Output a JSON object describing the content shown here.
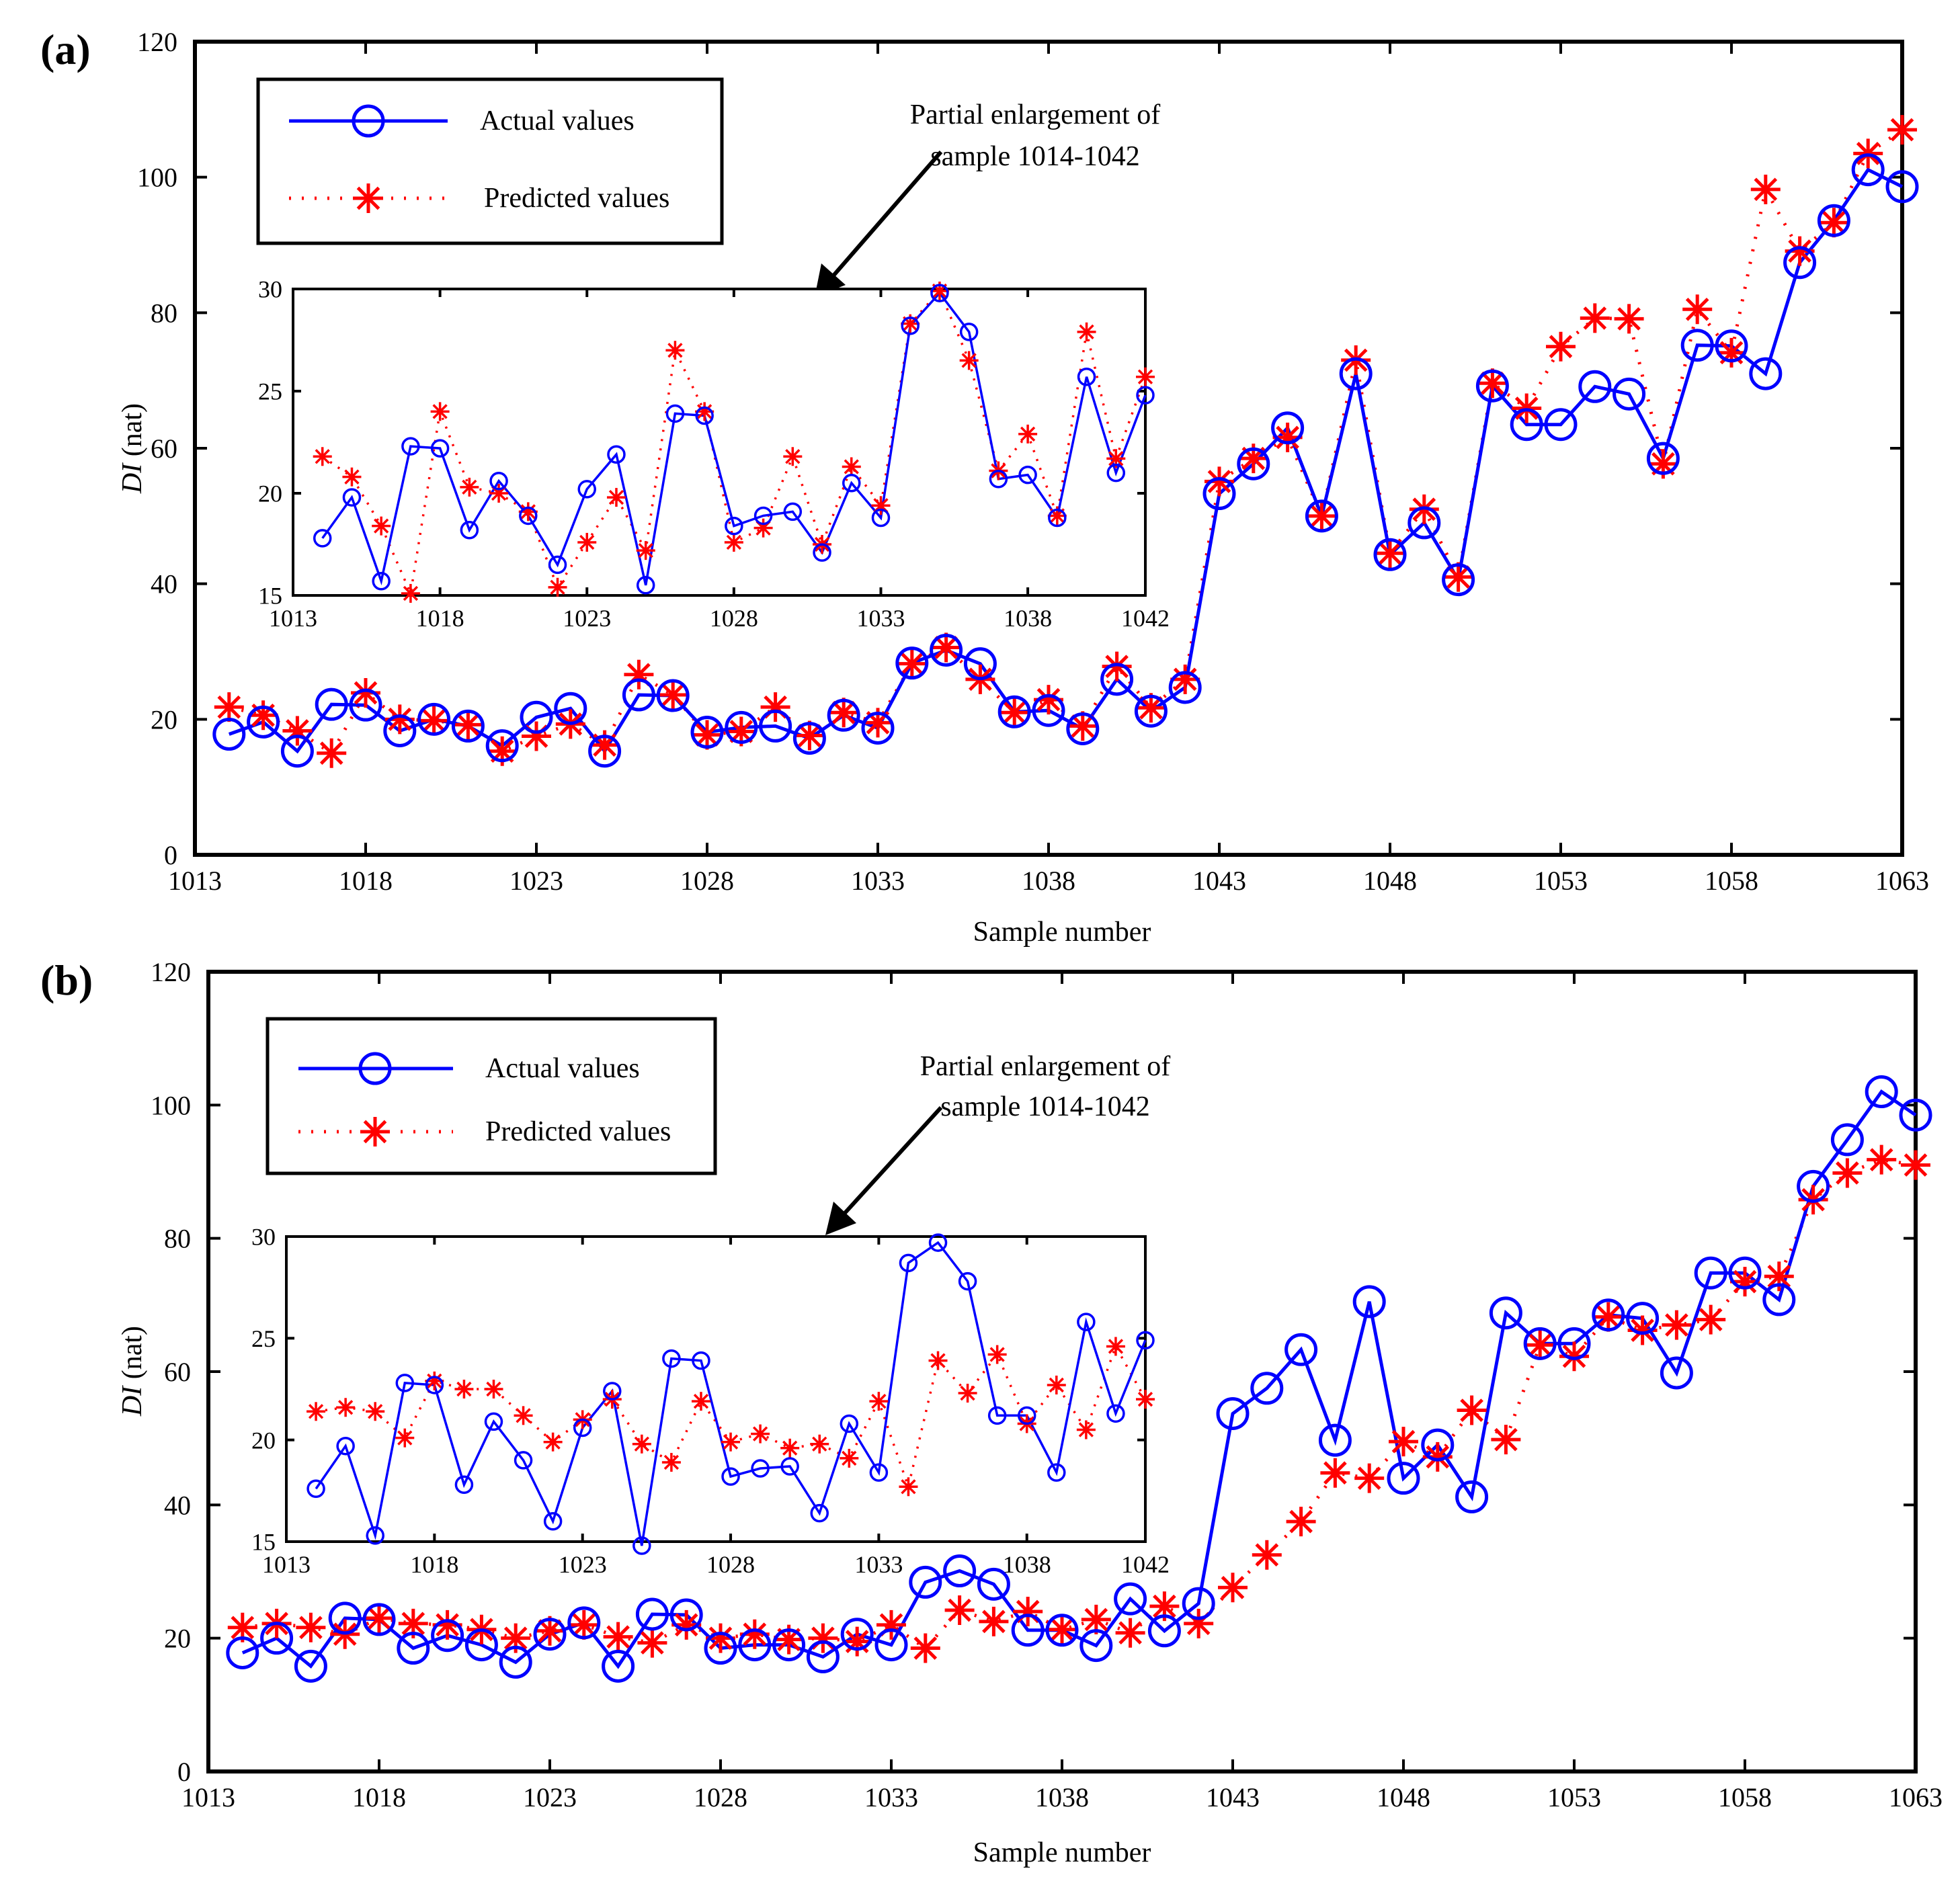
{
  "chart_data": [
    {
      "panel_label": "(a)",
      "type": "line",
      "xlabel": "Sample number",
      "ylabel_italic": "DI",
      "ylabel_rest": " (nat)",
      "xlim": [
        1013,
        1063
      ],
      "ylim": [
        0,
        120
      ],
      "xticks": [
        1013,
        1018,
        1023,
        1028,
        1033,
        1038,
        1043,
        1048,
        1053,
        1058,
        1063
      ],
      "yticks": [
        0,
        20,
        40,
        60,
        80,
        100,
        120
      ],
      "legend": {
        "position": "top-left",
        "entries": [
          "Actual values",
          "Predicted values"
        ]
      },
      "annotation": {
        "line1": "Partial enlargement of",
        "line2": "sample 1014-1042"
      },
      "x": [
        1014,
        1015,
        1016,
        1017,
        1018,
        1019,
        1020,
        1021,
        1022,
        1023,
        1024,
        1025,
        1026,
        1027,
        1028,
        1029,
        1030,
        1031,
        1032,
        1033,
        1034,
        1035,
        1036,
        1037,
        1038,
        1039,
        1040,
        1041,
        1042,
        1043,
        1044,
        1045,
        1046,
        1047,
        1048,
        1049,
        1050,
        1051,
        1052,
        1053,
        1054,
        1055,
        1056,
        1057,
        1058,
        1059,
        1060,
        1061,
        1062,
        1063
      ],
      "series": [
        {
          "name": "Actual values",
          "color": "#0000ff",
          "style": "solid",
          "marker": "circle",
          "values": [
            17.8,
            19.6,
            15.3,
            22.2,
            22.1,
            18.3,
            20.0,
            19.0,
            16.1,
            20.3,
            21.6,
            15.3,
            23.6,
            23.5,
            18.1,
            18.8,
            19.0,
            17.2,
            20.6,
            18.7,
            28.3,
            30.2,
            28.2,
            21.1,
            21.3,
            18.6,
            25.9,
            21.2,
            24.7,
            53.3,
            57.7,
            63.0,
            50.0,
            71.0,
            44.3,
            49.0,
            40.6,
            69.2,
            63.5,
            63.5,
            69.1,
            68.0,
            58.5,
            75.2,
            75.1,
            71.0,
            87.4,
            93.6,
            101.1,
            98.6
          ]
        },
        {
          "name": "Predicted values",
          "color": "#ff0000",
          "style": "dotted",
          "marker": "asterisk",
          "values": [
            21.8,
            20.6,
            18.3,
            15.0,
            23.9,
            20.0,
            19.8,
            19.2,
            15.3,
            17.5,
            19.3,
            16.2,
            26.6,
            23.6,
            17.7,
            18.2,
            21.8,
            17.6,
            21.0,
            19.5,
            28.2,
            30.6,
            25.9,
            21.0,
            22.9,
            19.0,
            27.8,
            21.7,
            25.9,
            55.1,
            58.5,
            61.6,
            50.0,
            73.0,
            44.5,
            51.0,
            41.0,
            69.6,
            65.9,
            75.0,
            79.2,
            79.1,
            57.7,
            80.5,
            74.1,
            98.2,
            89.1,
            93.3,
            103.5,
            107.0
          ]
        }
      ]
    },
    {
      "panel_label": "",
      "type": "line",
      "xlim": [
        1013,
        1042
      ],
      "ylim": [
        15,
        30
      ],
      "xticks": [
        1013,
        1018,
        1023,
        1028,
        1033,
        1038,
        1042
      ],
      "yticks": [
        15,
        20,
        25,
        30
      ],
      "x": [
        1014,
        1015,
        1016,
        1017,
        1018,
        1019,
        1020,
        1021,
        1022,
        1023,
        1024,
        1025,
        1026,
        1027,
        1028,
        1029,
        1030,
        1031,
        1032,
        1033,
        1034,
        1035,
        1036,
        1037,
        1038,
        1039,
        1040,
        1041,
        1042
      ],
      "series": [
        {
          "color": "#0000ff",
          "style": "solid",
          "marker": "circle",
          "values": [
            17.8,
            19.8,
            15.7,
            22.3,
            22.2,
            18.2,
            20.6,
            18.9,
            16.5,
            20.2,
            21.9,
            15.5,
            23.9,
            23.8,
            18.4,
            18.9,
            19.1,
            17.1,
            20.5,
            18.8,
            28.2,
            29.8,
            27.9,
            20.7,
            20.9,
            18.8,
            25.7,
            21.0,
            24.8
          ]
        },
        {
          "color": "#ff0000",
          "style": "dotted",
          "marker": "asterisk",
          "values": [
            21.8,
            20.8,
            18.4,
            15.1,
            24.0,
            20.3,
            20.0,
            19.1,
            15.4,
            17.6,
            19.8,
            17.2,
            27.0,
            24.0,
            17.6,
            18.3,
            21.8,
            17.5,
            21.3,
            19.4,
            28.3,
            29.9,
            26.5,
            21.1,
            22.9,
            18.9,
            27.9,
            21.7,
            25.7
          ]
        }
      ]
    },
    {
      "panel_label": "(b)",
      "type": "line",
      "xlabel": "Sample number",
      "ylabel_italic": "DI",
      "ylabel_rest": " (nat)",
      "xlim": [
        1013,
        1063
      ],
      "ylim": [
        0,
        120
      ],
      "xticks": [
        1013,
        1018,
        1023,
        1028,
        1033,
        1038,
        1043,
        1048,
        1053,
        1058,
        1063
      ],
      "yticks": [
        0,
        20,
        40,
        60,
        80,
        100,
        120
      ],
      "legend": {
        "position": "top-left",
        "entries": [
          "Actual values",
          "Predicted values"
        ]
      },
      "annotation": {
        "line1": "Partial enlargement of",
        "line2": "sample 1014-1042"
      },
      "x": [
        1014,
        1015,
        1016,
        1017,
        1018,
        1019,
        1020,
        1021,
        1022,
        1023,
        1024,
        1025,
        1026,
        1027,
        1028,
        1029,
        1030,
        1031,
        1032,
        1033,
        1034,
        1035,
        1036,
        1037,
        1038,
        1039,
        1040,
        1041,
        1042,
        1043,
        1044,
        1045,
        1046,
        1047,
        1048,
        1049,
        1050,
        1051,
        1052,
        1053,
        1054,
        1055,
        1056,
        1057,
        1058,
        1059,
        1060,
        1061,
        1062,
        1063
      ],
      "series": [
        {
          "name": "Actual values",
          "color": "#0000ff",
          "style": "solid",
          "marker": "circle",
          "values": [
            17.8,
            20.0,
            15.8,
            23.0,
            22.8,
            18.5,
            20.4,
            19.0,
            16.4,
            20.6,
            22.3,
            15.8,
            23.6,
            23.5,
            18.5,
            19.0,
            19.0,
            17.2,
            20.6,
            19.0,
            28.4,
            30.1,
            28.1,
            21.2,
            21.2,
            18.9,
            25.9,
            21.1,
            25.2,
            53.7,
            57.5,
            63.3,
            49.7,
            70.5,
            44.0,
            49.0,
            41.2,
            68.8,
            64.2,
            64.2,
            68.5,
            68.0,
            59.8,
            74.8,
            74.8,
            70.8,
            87.8,
            94.8,
            102.0,
            98.5
          ]
        },
        {
          "name": "Predicted values",
          "color": "#ff0000",
          "style": "dotted",
          "marker": "asterisk",
          "values": [
            21.6,
            22.2,
            21.6,
            20.6,
            23.0,
            22.2,
            22.0,
            21.3,
            20.0,
            21.1,
            22.0,
            20.2,
            19.3,
            22.0,
            20.0,
            20.6,
            19.8,
            20.0,
            19.5,
            22.0,
            18.5,
            24.2,
            22.5,
            24.0,
            21.3,
            22.8,
            20.8,
            24.8,
            22.2,
            27.6,
            32.5,
            37.5,
            44.8,
            44.0,
            49.5,
            47.2,
            54.2,
            49.8,
            64.0,
            62.3,
            68.2,
            66.2,
            67.0,
            67.8,
            73.5,
            74.3,
            85.8,
            89.8,
            91.8,
            91.0
          ]
        }
      ]
    },
    {
      "panel_label": "",
      "type": "line",
      "xlim": [
        1013,
        1042
      ],
      "ylim": [
        15,
        30
      ],
      "xticks": [
        1013,
        1018,
        1023,
        1028,
        1033,
        1038,
        1042
      ],
      "yticks": [
        15,
        20,
        25,
        30
      ],
      "x": [
        1014,
        1015,
        1016,
        1017,
        1018,
        1019,
        1020,
        1021,
        1022,
        1023,
        1024,
        1025,
        1026,
        1027,
        1028,
        1029,
        1030,
        1031,
        1032,
        1033,
        1034,
        1035,
        1036,
        1037,
        1038,
        1039,
        1040,
        1041,
        1042
      ],
      "series": [
        {
          "color": "#0000ff",
          "style": "solid",
          "marker": "circle",
          "values": [
            17.6,
            19.7,
            15.3,
            22.8,
            22.7,
            17.8,
            20.9,
            19.0,
            16.0,
            20.6,
            22.4,
            14.8,
            24.0,
            23.9,
            18.2,
            18.6,
            18.7,
            16.4,
            20.8,
            18.4,
            28.7,
            29.7,
            27.8,
            21.2,
            21.2,
            18.4,
            25.8,
            21.3,
            24.9
          ]
        },
        {
          "color": "#ff0000",
          "style": "dotted",
          "marker": "asterisk",
          "values": [
            21.4,
            21.6,
            21.4,
            20.1,
            22.9,
            22.5,
            22.5,
            21.2,
            19.9,
            21.0,
            22.0,
            19.8,
            18.9,
            21.9,
            19.9,
            20.3,
            19.6,
            19.8,
            19.1,
            21.9,
            17.7,
            23.9,
            22.3,
            24.2,
            20.8,
            22.7,
            20.5,
            24.6,
            22.0
          ]
        }
      ]
    }
  ]
}
